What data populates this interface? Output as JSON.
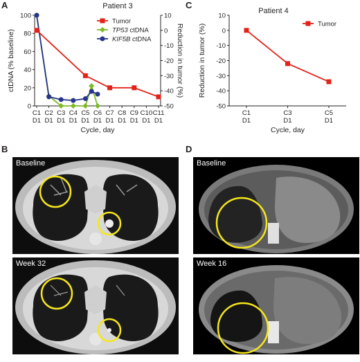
{
  "panels": {
    "a": {
      "letter": "A",
      "title": "Patient 3"
    },
    "b": {
      "letter": "B",
      "top_label": "Baseline",
      "bottom_label": "Week 32"
    },
    "c": {
      "letter": "C",
      "title": "Patient 4"
    },
    "d": {
      "letter": "D",
      "top_label": "Baseline",
      "bottom_label": "Week 16"
    }
  },
  "chart_data": [
    {
      "type": "line",
      "title": "Patient 3",
      "xlabel": "Cycle, day",
      "ylabel": "ctDNA (% baseline)",
      "y2label": "Reduction in tumor (%)",
      "categories": [
        {
          "cycle": "C1",
          "day": "D1"
        },
        {
          "cycle": "C2",
          "day": "D1"
        },
        {
          "cycle": "C3",
          "day": "D1"
        },
        {
          "cycle": "C4",
          "day": "D1"
        },
        {
          "cycle": "C5",
          "day": "D1"
        },
        {
          "cycle": "C6",
          "day": "D1"
        },
        {
          "cycle": "C7",
          "day": "D1"
        },
        {
          "cycle": "C8",
          "day": "D1"
        },
        {
          "cycle": "C9",
          "day": "D1"
        },
        {
          "cycle": "C10",
          "day": "D1"
        },
        {
          "cycle": "C11",
          "day": "D1"
        }
      ],
      "ylim": [
        0,
        100
      ],
      "yticks": [
        0,
        20,
        40,
        60,
        80,
        100
      ],
      "y2lim": [
        -50,
        10
      ],
      "y2ticks": [
        10,
        0,
        -10,
        -20,
        -30,
        -40,
        -50
      ],
      "series": [
        {
          "name": "Tumor",
          "italic": "",
          "suffix": "",
          "color": "#e2231a",
          "marker": "square",
          "axis": "right",
          "points": [
            [
              0,
              0
            ],
            [
              4,
              -30
            ],
            [
              6,
              -38
            ],
            [
              8,
              -38
            ],
            [
              10,
              -44
            ]
          ]
        },
        {
          "name": "TP53 ctDNA",
          "italic": "TP53",
          "suffix": " ctDNA",
          "color": "#7cb927",
          "marker": "diamond",
          "axis": "left",
          "points": [
            [
              0,
              100
            ],
            [
              1,
              11
            ],
            [
              2,
              0
            ],
            [
              3,
              0
            ],
            [
              4,
              0
            ],
            [
              4.5,
              22
            ],
            [
              5,
              0
            ]
          ]
        },
        {
          "name": "KIF5B ctDNA",
          "italic": "KIF5B",
          "suffix": " ctDNA",
          "color": "#27348b",
          "marker": "circle",
          "axis": "left",
          "points": [
            [
              0,
              100
            ],
            [
              1,
              10
            ],
            [
              2,
              7
            ],
            [
              3,
              6
            ],
            [
              4,
              8
            ],
            [
              4.5,
              16
            ],
            [
              5,
              13
            ]
          ]
        }
      ]
    },
    {
      "type": "line",
      "title": "Patient 4",
      "xlabel": "Cycle, day",
      "ylabel": "Reduction in tumor (%)",
      "categories": [
        {
          "cycle": "C1",
          "day": "D1"
        },
        {
          "cycle": "C3",
          "day": "D1"
        },
        {
          "cycle": "C5",
          "day": "D1"
        }
      ],
      "ylim": [
        -50,
        10
      ],
      "yticks": [
        10,
        0,
        -10,
        -20,
        -30,
        -40,
        -50
      ],
      "series": [
        {
          "name": "Tumor",
          "italic": "",
          "suffix": "",
          "color": "#e2231a",
          "marker": "square",
          "points": [
            [
              0,
              0
            ],
            [
              1,
              -22
            ],
            [
              2,
              -34
            ]
          ]
        }
      ]
    }
  ]
}
